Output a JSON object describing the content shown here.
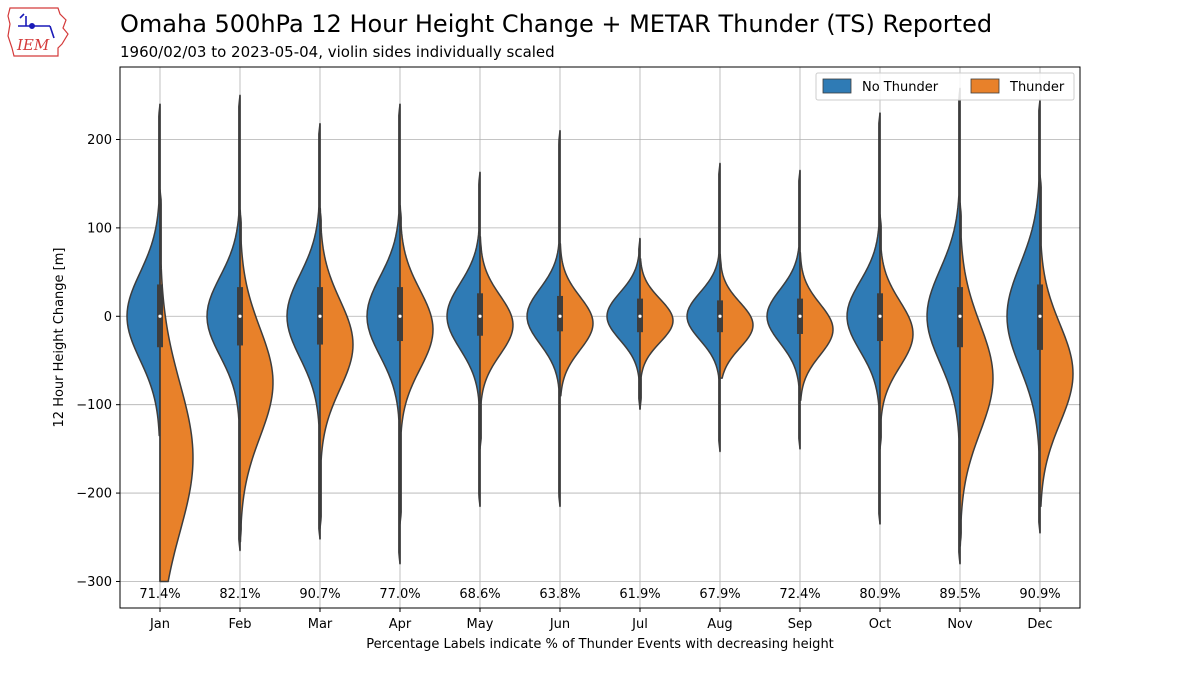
{
  "header": {
    "title": "Omaha 500hPa 12 Hour Height Change + METAR Thunder (TS) Reported",
    "subtitle": "1960/02/03 to 2023-05-04, violin sides individually scaled",
    "logo_text": "IEM"
  },
  "colors": {
    "no_thunder": "#2f7bb5",
    "thunder": "#e8812a",
    "outline": "#3d3d3d",
    "grid": "#b0b0b0",
    "logo": "#d43a3a",
    "logo_station": "#1a1ab8"
  },
  "chart_data": {
    "type": "violin",
    "ylabel": "12 Hour Height Change [m]",
    "xlabel": "Percentage Labels indicate % of Thunder Events with decreasing height",
    "ylim": [
      -330,
      282
    ],
    "yticks": [
      200,
      100,
      0,
      -100,
      -200,
      -300
    ],
    "ytick_labels": [
      "200",
      "100",
      "0",
      "−100",
      "−200",
      "−300"
    ],
    "grid": true,
    "legend": {
      "placement": "top-right",
      "entries": [
        {
          "name": "No Thunder",
          "color_key": "no_thunder"
        },
        {
          "name": "Thunder",
          "color_key": "thunder"
        }
      ]
    },
    "categories": [
      "Jan",
      "Feb",
      "Mar",
      "Apr",
      "May",
      "Jun",
      "Jul",
      "Aug",
      "Sep",
      "Oct",
      "Nov",
      "Dec"
    ],
    "pct_labels": [
      "71.4%",
      "82.1%",
      "90.7%",
      "77.0%",
      "68.6%",
      "63.8%",
      "61.9%",
      "67.9%",
      "72.4%",
      "80.9%",
      "89.5%",
      "90.9%"
    ],
    "series": [
      {
        "name": "No Thunder",
        "side": "left",
        "stats": [
          {
            "min": -135,
            "max": 240,
            "spread": 44,
            "center": 0
          },
          {
            "min": -265,
            "max": 250,
            "spread": 40,
            "center": 0
          },
          {
            "min": -252,
            "max": 218,
            "spread": 42,
            "center": 0
          },
          {
            "min": -280,
            "max": 240,
            "spread": 40,
            "center": 0
          },
          {
            "min": -215,
            "max": 163,
            "spread": 33,
            "center": 0
          },
          {
            "min": -215,
            "max": 210,
            "spread": 28,
            "center": 0
          },
          {
            "min": -105,
            "max": 88,
            "spread": 24,
            "center": 0
          },
          {
            "min": -153,
            "max": 173,
            "spread": 24,
            "center": 0
          },
          {
            "min": -150,
            "max": 165,
            "spread": 27,
            "center": 0
          },
          {
            "min": -235,
            "max": 230,
            "spread": 35,
            "center": 0
          },
          {
            "min": -280,
            "max": 258,
            "spread": 47,
            "center": 0
          },
          {
            "min": -245,
            "max": 245,
            "spread": 52,
            "center": 0
          }
        ]
      },
      {
        "name": "Thunder",
        "side": "right",
        "stats": [
          {
            "min": -300,
            "max": 143,
            "spread": 75,
            "center": -160
          },
          {
            "min": -255,
            "max": 120,
            "spread": 55,
            "center": -75
          },
          {
            "min": -240,
            "max": 122,
            "spread": 45,
            "center": -32
          },
          {
            "min": -235,
            "max": 125,
            "spread": 40,
            "center": -15
          },
          {
            "min": -150,
            "max": 90,
            "spread": 30,
            "center": -10
          },
          {
            "min": -90,
            "max": 82,
            "spread": 27,
            "center": -8
          },
          {
            "min": -105,
            "max": 65,
            "spread": 22,
            "center": -5
          },
          {
            "min": -70,
            "max": 70,
            "spread": 23,
            "center": -10
          },
          {
            "min": -95,
            "max": 72,
            "spread": 26,
            "center": -15
          },
          {
            "min": -150,
            "max": 115,
            "spread": 33,
            "center": -20
          },
          {
            "min": -260,
            "max": 128,
            "spread": 55,
            "center": -70
          },
          {
            "min": -215,
            "max": 160,
            "spread": 50,
            "center": -65
          }
        ]
      }
    ],
    "box": [
      {
        "q1": -35,
        "q3": 36
      },
      {
        "q1": -33,
        "q3": 33
      },
      {
        "q1": -32,
        "q3": 33
      },
      {
        "q1": -28,
        "q3": 33
      },
      {
        "q1": -22,
        "q3": 26
      },
      {
        "q1": -17,
        "q3": 23
      },
      {
        "q1": -18,
        "q3": 20
      },
      {
        "q1": -18,
        "q3": 18
      },
      {
        "q1": -20,
        "q3": 20
      },
      {
        "q1": -28,
        "q3": 26
      },
      {
        "q1": -35,
        "q3": 33
      },
      {
        "q1": -38,
        "q3": 36
      }
    ]
  }
}
